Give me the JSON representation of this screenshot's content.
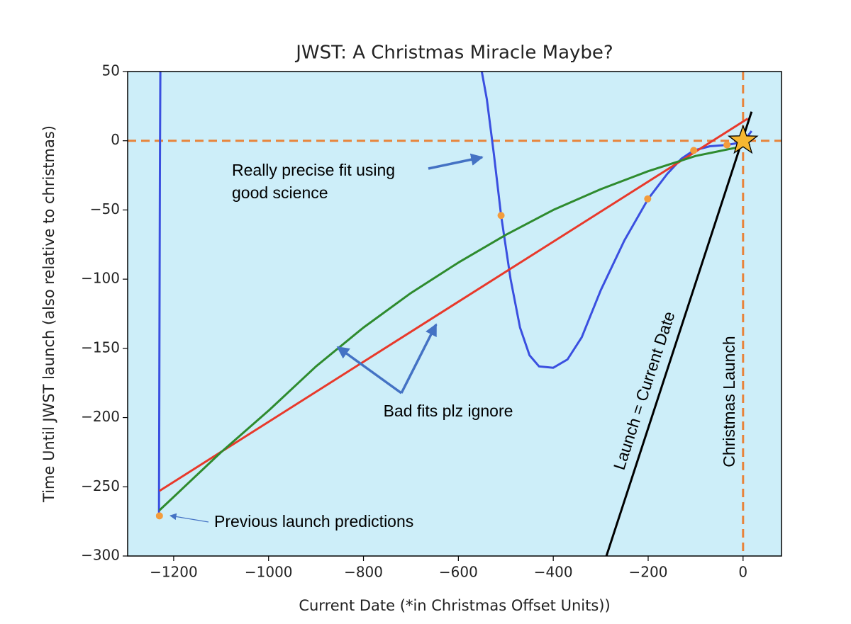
{
  "chart_data": {
    "type": "line",
    "title": "JWST: A Christmas Miracle Maybe?",
    "xlabel": "Current Date (*in Christmas Offset Units))",
    "ylabel": "Time Until JWST launch (also relative to christmas)",
    "xlim": [
      -1297,
      81
    ],
    "ylim": [
      -300,
      50
    ],
    "xticks": [
      {
        "value": -1200,
        "label": "−1200"
      },
      {
        "value": -1000,
        "label": "−1000"
      },
      {
        "value": -800,
        "label": "−800"
      },
      {
        "value": -600,
        "label": "−600"
      },
      {
        "value": -400,
        "label": "−400"
      },
      {
        "value": -200,
        "label": "−200"
      },
      0
    ],
    "yticks": [
      50,
      0,
      {
        "value": -50,
        "label": "−50"
      },
      {
        "value": -100,
        "label": "−100"
      },
      {
        "value": -150,
        "label": "−150"
      },
      {
        "value": -200,
        "label": "−200"
      },
      {
        "value": -250,
        "label": "−250"
      },
      {
        "value": -300,
        "label": "−300"
      }
    ],
    "background": "#cdeef9",
    "series": [
      {
        "color": "#3a4fe0",
        "x": [
          -1231,
          -1230,
          -1229,
          -1228,
          -1210,
          -556,
          -540,
          -525,
          -510,
          -490,
          -470,
          -450,
          -430,
          -400,
          -370,
          -340,
          -300,
          -250,
          -200,
          -160,
          -130,
          -104,
          -70,
          -34,
          0,
          18
        ],
        "values": [
          -271,
          -150,
          -20,
          60,
          null,
          60,
          30,
          -10,
          -54,
          -100,
          -135,
          -155,
          -163,
          -164,
          -158,
          -142,
          -108,
          -72,
          -42,
          -24,
          -13,
          -7,
          -4,
          -3,
          -1,
          7
        ]
      },
      {
        "color": "#e8392b",
        "x": [
          -1230,
          10
        ],
        "values": [
          -253,
          16
        ]
      },
      {
        "color": "#2e8b2e",
        "x": [
          -1230,
          -1100,
          -1000,
          -900,
          -800,
          -700,
          -600,
          -500,
          -400,
          -300,
          -200,
          -100,
          0,
          15
        ],
        "values": [
          -267,
          -225,
          -195,
          -163,
          -135,
          -110,
          -88,
          -68,
          -50,
          -35,
          -22,
          -11,
          -4,
          -3
        ]
      },
      {
        "color": "#000000",
        "x": [
          -288,
          18
        ],
        "values": [
          -300,
          21
        ]
      }
    ],
    "points": {
      "color": "#f39c3c",
      "x": [
        -1230,
        -510,
        -201,
        -104,
        -34
      ],
      "values": [
        -271,
        -54,
        -42,
        -7,
        -3
      ]
    },
    "star": {
      "color": "#f7b731",
      "x": 0,
      "y": 0
    },
    "reference_lines": {
      "color": "#e8833a",
      "x": 0,
      "y": 0
    },
    "annotations": {
      "precise": [
        "Really precise fit using",
        "good science"
      ],
      "bad": "Bad fits plz ignore",
      "previous": "Previous launch predictions",
      "launch_line": "Launch = Current Date",
      "christmas": "Christmas Launch"
    }
  }
}
